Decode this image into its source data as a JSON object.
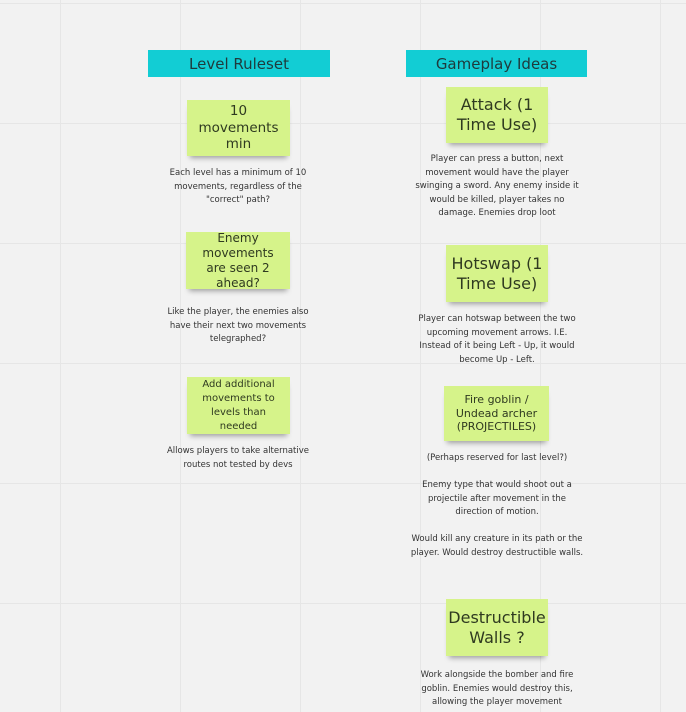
{
  "columns": [
    {
      "title": "Level Ruleset",
      "cards": [
        {
          "sticky": "10 movements min",
          "description": "Each level has a minimum of 10 movements, regardless of the \"correct\" path?"
        },
        {
          "sticky": "Enemy movements are seen 2 ahead?",
          "description": "Like the player, the enemies also have their next two movements telegraphed?"
        },
        {
          "sticky": "Add additional movements to levels than needed",
          "description": "Allows players to take alternative routes not tested by devs"
        }
      ]
    },
    {
      "title": "Gameplay Ideas",
      "cards": [
        {
          "sticky": "Attack (1 Time Use)",
          "description": "Player can press a button, next movement would have the player swinging a sword. Any enemy inside it would be killed, player takes no damage. Enemies drop loot"
        },
        {
          "sticky": "Hotswap (1 Time Use)",
          "description": "Player can hotswap between the two upcoming movement arrows. I.E. Instead of it being Left - Up, it would become Up - Left."
        },
        {
          "sticky": "Fire goblin / Undead archer (PROJECTILES)",
          "description": "(Perhaps reserved for last level?)\n\nEnemy type that would shoot out a projectile after movement in the direction of motion.\n\nWould kill any creature in its path or the player. Would destroy destructible walls."
        },
        {
          "sticky": "Destructible Walls ?",
          "description": "Work alongside the bomber and fire goblin. Enemies would destroy this, allowing the player movement"
        }
      ]
    }
  ],
  "colors": {
    "header": "#12cdd4",
    "sticky": "#d6f38a",
    "background": "#f2f2f2"
  }
}
